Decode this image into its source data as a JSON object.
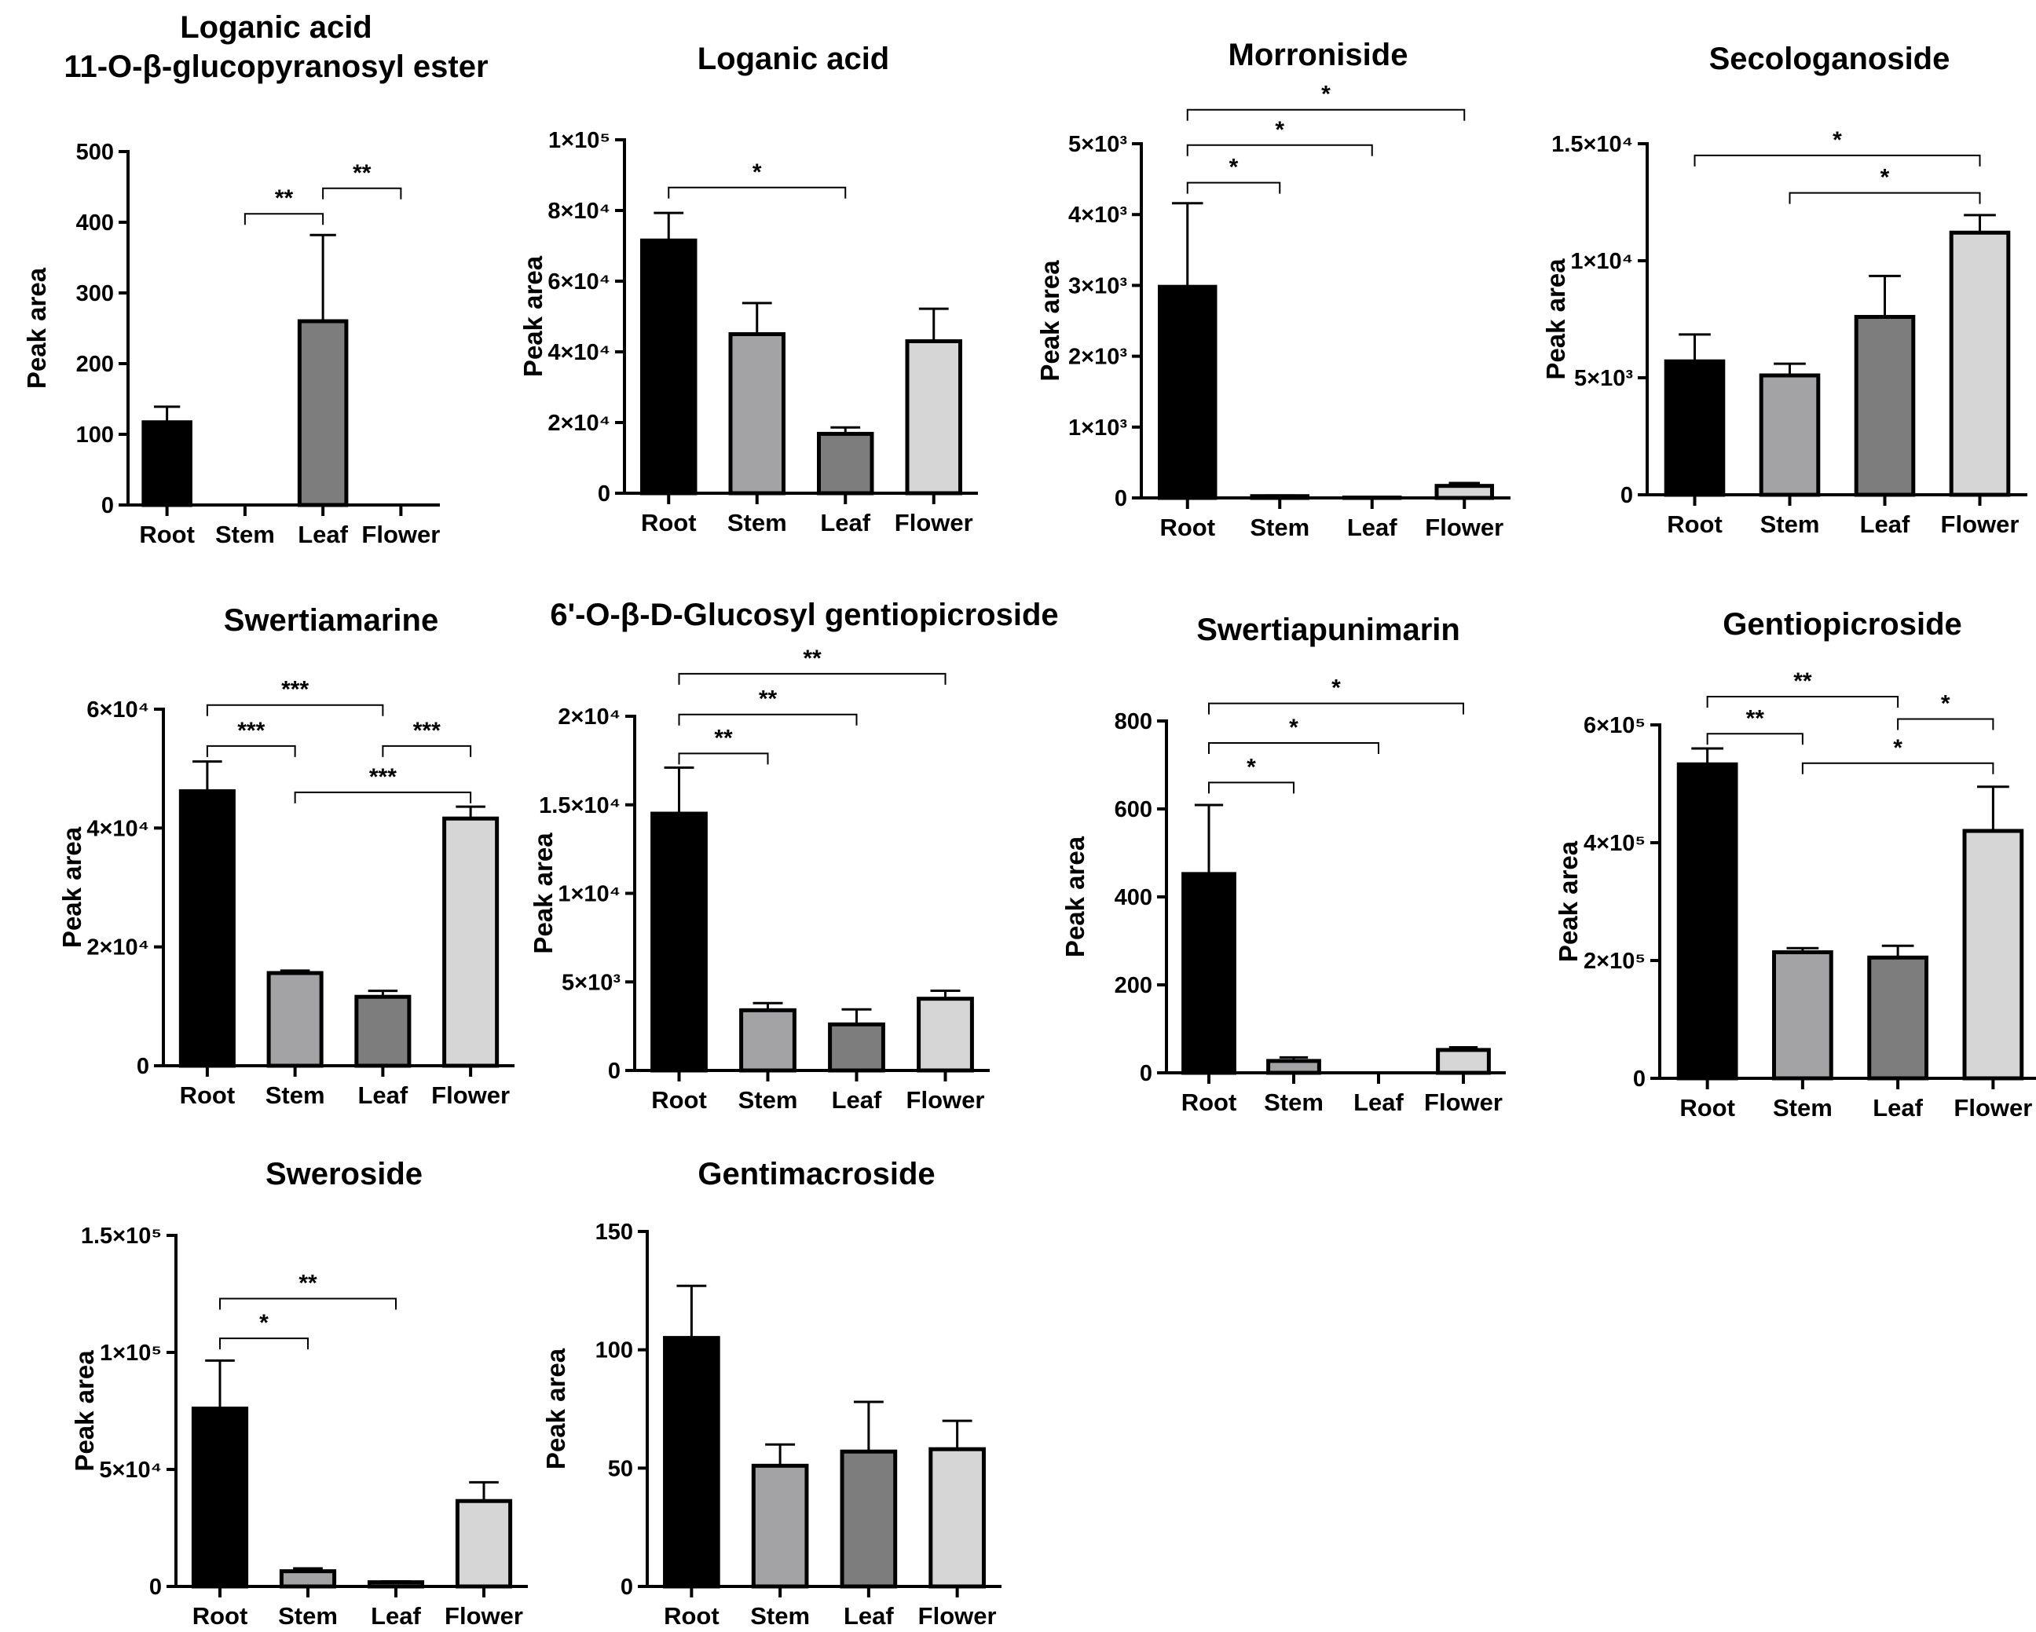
{
  "figure": {
    "ylabel": "Peak area",
    "categories": [
      "Root",
      "Stem",
      "Leaf",
      "Flower"
    ],
    "colors": {
      "Root": "#000000",
      "Stem": "#a3a3a6",
      "Leaf": "#7d7d7d",
      "Flower": "#d6d6d6",
      "axis": "#000000"
    }
  },
  "chart_data": [
    {
      "type": "bar",
      "title": "Loganic acid\n11-O-β-glucopyranosyl ester",
      "categories": [
        "Root",
        "Stem",
        "Leaf",
        "Flower"
      ],
      "values": [
        117,
        0,
        260,
        0
      ],
      "errors": [
        22,
        0,
        122,
        0
      ],
      "ylim": [
        0,
        500
      ],
      "yticks": [
        0,
        100,
        200,
        300,
        400,
        500
      ],
      "ytick_labels": [
        "0",
        "100",
        "200",
        "300",
        "400",
        "500"
      ],
      "ylabel": "Peak area",
      "significance": [
        {
          "from": "Stem",
          "to": "Leaf",
          "y": 412,
          "label": "**"
        },
        {
          "from": "Leaf",
          "to": "Flower",
          "y": 448,
          "label": "**"
        }
      ]
    },
    {
      "type": "bar",
      "title": "Loganic acid",
      "categories": [
        "Root",
        "Stem",
        "Leaf",
        "Flower"
      ],
      "values": [
        71500,
        45000,
        16800,
        43000
      ],
      "errors": [
        7800,
        8800,
        1800,
        9200
      ],
      "ylim": [
        0,
        100000
      ],
      "yticks": [
        0,
        20000,
        40000,
        60000,
        80000,
        100000
      ],
      "ytick_labels": [
        "0",
        "2×10⁴",
        "4×10⁴",
        "6×10⁴",
        "8×10⁴",
        "1×10⁵"
      ],
      "ylabel": "Peak area",
      "significance": [
        {
          "from": "Root",
          "to": "Leaf",
          "y": 86500,
          "label": "*"
        }
      ]
    },
    {
      "type": "bar",
      "title": "Morroniside",
      "categories": [
        "Root",
        "Stem",
        "Leaf",
        "Flower"
      ],
      "values": [
        2980,
        25,
        5,
        170
      ],
      "errors": [
        1180,
        10,
        3,
        40
      ],
      "ylim": [
        0,
        5000
      ],
      "yticks": [
        0,
        1000,
        2000,
        3000,
        4000,
        5000
      ],
      "ytick_labels": [
        "0",
        "1×10³",
        "2×10³",
        "3×10³",
        "4×10³",
        "5×10³"
      ],
      "ylabel": "Peak area",
      "significance": [
        {
          "from": "Root",
          "to": "Stem",
          "y": 4450,
          "label": "*"
        },
        {
          "from": "Root",
          "to": "Leaf",
          "y": 4980,
          "label": "*"
        },
        {
          "from": "Root",
          "to": "Flower",
          "y": 5480,
          "label": "*"
        }
      ]
    },
    {
      "type": "bar",
      "title": "Secologanoside",
      "categories": [
        "Root",
        "Stem",
        "Leaf",
        "Flower"
      ],
      "values": [
        5700,
        5100,
        7600,
        11200
      ],
      "errors": [
        1150,
        500,
        1750,
        750
      ],
      "ylim": [
        0,
        15000
      ],
      "yticks": [
        0,
        5000,
        10000,
        15000
      ],
      "ytick_labels": [
        "0",
        "5×10³",
        "1×10⁴",
        "1.5×10⁴"
      ],
      "ylabel": "Peak area",
      "significance": [
        {
          "from": "Stem",
          "to": "Flower",
          "y": 12900,
          "label": "*"
        },
        {
          "from": "Root",
          "to": "Flower",
          "y": 14500,
          "label": "*"
        }
      ]
    },
    {
      "type": "bar",
      "title": "Swertiamarine",
      "categories": [
        "Root",
        "Stem",
        "Leaf",
        "Flower"
      ],
      "values": [
        46200,
        15600,
        11600,
        41600
      ],
      "errors": [
        5000,
        400,
        1000,
        2000
      ],
      "ylim": [
        0,
        60000
      ],
      "yticks": [
        0,
        20000,
        40000,
        60000
      ],
      "ytick_labels": [
        "0",
        "2×10⁴",
        "4×10⁴",
        "6×10⁴"
      ],
      "ylabel": "Peak area",
      "significance": [
        {
          "from": "Root",
          "to": "Stem",
          "y": 53800,
          "label": "***"
        },
        {
          "from": "Root",
          "to": "Leaf",
          "y": 60700,
          "label": "***"
        },
        {
          "from": "Leaf",
          "to": "Flower",
          "y": 53800,
          "label": "***"
        },
        {
          "from": "Stem",
          "to": "Flower",
          "y": 46000,
          "label": "***"
        }
      ]
    },
    {
      "type": "bar",
      "title": "6'-O-β-D-Glucosyl gentiopicroside",
      "categories": [
        "Root",
        "Stem",
        "Leaf",
        "Flower"
      ],
      "values": [
        14500,
        3400,
        2600,
        4050
      ],
      "errors": [
        2600,
        400,
        850,
        450
      ],
      "ylim": [
        0,
        20000
      ],
      "yticks": [
        0,
        5000,
        10000,
        15000,
        20000
      ],
      "ytick_labels": [
        "0",
        "5×10³",
        "1×10⁴",
        "1.5×10⁴",
        "2×10⁴"
      ],
      "ylabel": "Peak area",
      "significance": [
        {
          "from": "Root",
          "to": "Stem",
          "y": 17900,
          "label": "**"
        },
        {
          "from": "Root",
          "to": "Leaf",
          "y": 20100,
          "label": "**"
        },
        {
          "from": "Root",
          "to": "Flower",
          "y": 22400,
          "label": "**"
        }
      ]
    },
    {
      "type": "bar",
      "title": "Swertiapunimarin",
      "categories": [
        "Root",
        "Stem",
        "Leaf",
        "Flower"
      ],
      "values": [
        452,
        27,
        0,
        52
      ],
      "errors": [
        157,
        8,
        0,
        6
      ],
      "ylim": [
        0,
        800
      ],
      "yticks": [
        0,
        200,
        400,
        600,
        800
      ],
      "ytick_labels": [
        "0",
        "200",
        "400",
        "600",
        "800"
      ],
      "ylabel": "Peak area",
      "significance": [
        {
          "from": "Root",
          "to": "Stem",
          "y": 660,
          "label": "*"
        },
        {
          "from": "Root",
          "to": "Leaf",
          "y": 750,
          "label": "*"
        },
        {
          "from": "Root",
          "to": "Flower",
          "y": 840,
          "label": "*"
        }
      ]
    },
    {
      "type": "bar",
      "title": "Gentiopicroside",
      "categories": [
        "Root",
        "Stem",
        "Leaf",
        "Flower"
      ],
      "values": [
        533000,
        214000,
        205000,
        420000
      ],
      "errors": [
        27000,
        7000,
        20000,
        75000
      ],
      "ylim": [
        0,
        600000
      ],
      "yticks": [
        0,
        200000,
        400000,
        600000
      ],
      "ytick_labels": [
        "0",
        "2×10⁵",
        "4×10⁵",
        "6×10⁵"
      ],
      "ylabel": "Peak area",
      "significance": [
        {
          "from": "Root",
          "to": "Stem",
          "y": 585000,
          "label": "**"
        },
        {
          "from": "Root",
          "to": "Leaf",
          "y": 648000,
          "label": "**"
        },
        {
          "from": "Leaf",
          "to": "Flower",
          "y": 610000,
          "label": "*"
        },
        {
          "from": "Stem",
          "to": "Flower",
          "y": 535000,
          "label": "*"
        }
      ]
    },
    {
      "type": "bar",
      "title": "Sweroside",
      "categories": [
        "Root",
        "Stem",
        "Leaf",
        "Flower"
      ],
      "values": [
        76000,
        6500,
        1800,
        36500
      ],
      "errors": [
        20500,
        1200,
        400,
        8000
      ],
      "ylim": [
        0,
        150000
      ],
      "yticks": [
        0,
        50000,
        100000,
        150000
      ],
      "ytick_labels": [
        "0",
        "5×10⁴",
        "1×10⁵",
        "1.5×10⁵"
      ],
      "ylabel": "Peak area",
      "significance": [
        {
          "from": "Root",
          "to": "Stem",
          "y": 106000,
          "label": "*"
        },
        {
          "from": "Root",
          "to": "Leaf",
          "y": 123000,
          "label": "**"
        }
      ]
    },
    {
      "type": "bar",
      "title": "Gentimacroside",
      "categories": [
        "Root",
        "Stem",
        "Leaf",
        "Flower"
      ],
      "values": [
        105,
        51,
        57,
        58
      ],
      "errors": [
        22,
        9,
        21,
        12
      ],
      "ylim": [
        0,
        150
      ],
      "yticks": [
        0,
        50,
        100,
        150
      ],
      "ytick_labels": [
        "0",
        "50",
        "100",
        "150"
      ],
      "ylabel": "Peak area",
      "significance": []
    }
  ]
}
